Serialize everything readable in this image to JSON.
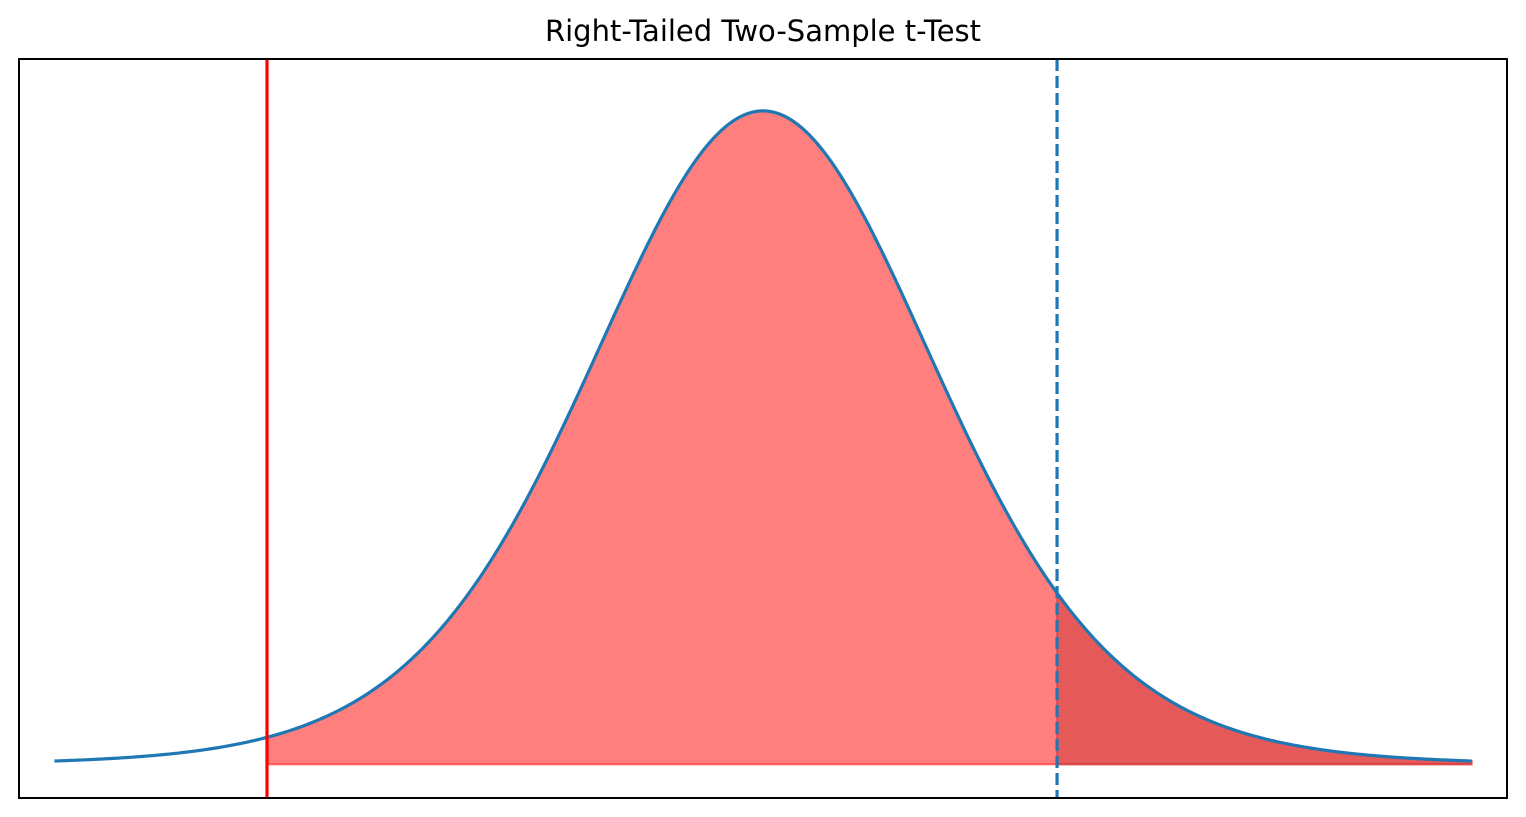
{
  "chart_data": {
    "type": "line",
    "title": "Right-Tailed Two-Sample t-Test",
    "xlabel": "",
    "ylabel": "",
    "xlim": [
      -4.2,
      4.2
    ],
    "ylim": [
      -0.02,
      0.42
    ],
    "grid": false,
    "ticks_visible": false,
    "series": [
      {
        "kind": "t-distribution-pdf",
        "df": 10,
        "x_range": [
          -4.0,
          4.0
        ],
        "color": "#1f77b4"
      }
    ],
    "shaded_regions": [
      {
        "x_from": -2.8,
        "x_to": 4.0,
        "color": "#ff0000",
        "alpha": 0.5
      },
      {
        "x_from": 1.66,
        "x_to": 4.0,
        "color": "#cc3333",
        "alpha": 0.5
      }
    ],
    "vertical_lines": [
      {
        "x": -2.8,
        "color": "#ff0000",
        "style": "solid"
      },
      {
        "x": 1.66,
        "color": "#1f77b4",
        "style": "dashed"
      }
    ]
  }
}
